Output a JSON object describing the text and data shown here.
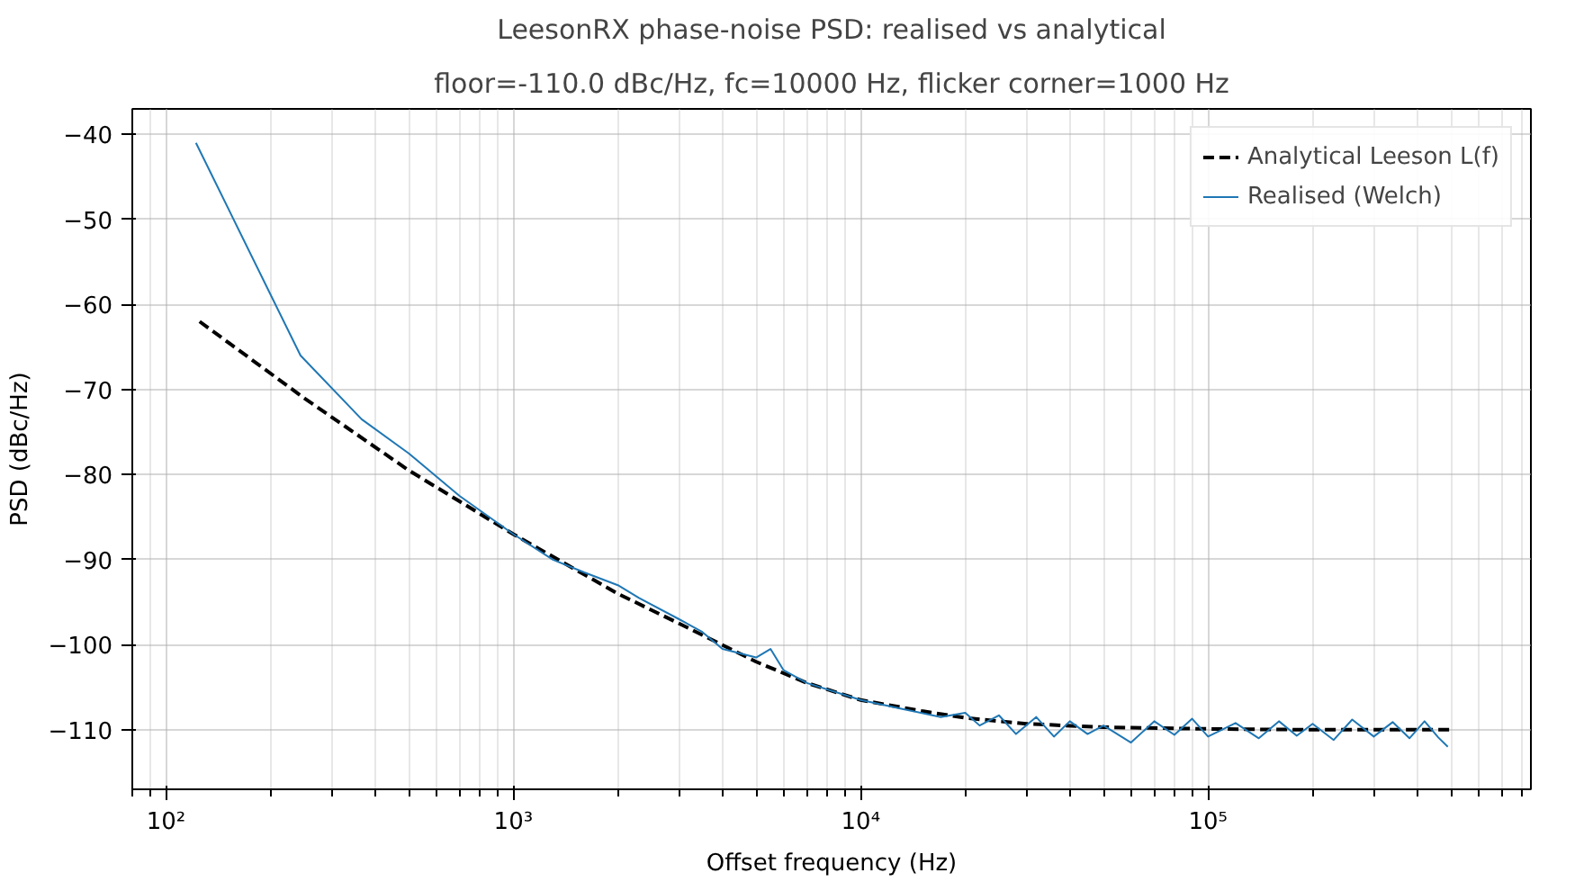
{
  "chart_data": {
    "type": "line",
    "title": "LeesonRX phase-noise PSD: realised vs analytical",
    "subtitle": "floor=-110.0 dBc/Hz, fc=10000 Hz, flicker corner=1000 Hz",
    "xlabel": "Offset frequency (Hz)",
    "ylabel": "PSD (dBc/Hz)",
    "log": "x",
    "grid": true,
    "legend": "top right",
    "marker": "none",
    "xlim": [
      80,
      850000
    ],
    "ylim": [
      -117,
      -37
    ],
    "xticks": [
      {
        "value": 100,
        "label": "10²"
      },
      {
        "value": 1000,
        "label": "10³"
      },
      {
        "value": 10000,
        "label": "10⁴"
      },
      {
        "value": 100000,
        "label": "10⁵"
      }
    ],
    "yticks": [
      -110,
      -100,
      -90,
      -80,
      -70,
      -60,
      -50,
      -40
    ],
    "series": [
      {
        "name": "Analytical Leeson L(f)",
        "color": "#000000",
        "line_style": "dashed",
        "x": [
          125,
          250,
          500,
          1000,
          2000,
          3000,
          5000,
          7000,
          10000,
          15000,
          20000,
          30000,
          50000,
          100000,
          200000,
          500000
        ],
        "values": [
          -62,
          -71,
          -79.5,
          -87,
          -94,
          -97.5,
          -102,
          -104.5,
          -106.5,
          -107.8,
          -108.6,
          -109.3,
          -109.7,
          -109.9,
          -110,
          -110
        ]
      },
      {
        "name": "Realised (Welch)",
        "color": "#1f77b4",
        "line_style": "solid",
        "x": [
          122,
          244,
          366,
          500,
          700,
          1000,
          1300,
          1600,
          2000,
          2300,
          3000,
          3500,
          4000,
          5000,
          5500,
          6000,
          7000,
          10000,
          13000,
          17000,
          20000,
          22000,
          25000,
          28000,
          32000,
          36000,
          40000,
          45000,
          50000,
          60000,
          70000,
          80000,
          90000,
          100000,
          120000,
          140000,
          160000,
          180000,
          200000,
          230000,
          260000,
          300000,
          340000,
          380000,
          420000,
          460000,
          490000
        ],
        "values": [
          -41,
          -66,
          -73.5,
          -77.5,
          -82.5,
          -87,
          -90,
          -91.5,
          -93,
          -94.5,
          -97,
          -98.5,
          -100.5,
          -101.5,
          -100.5,
          -103,
          -104.5,
          -106.5,
          -107.5,
          -108.5,
          -108,
          -109.5,
          -108.3,
          -110.5,
          -108.5,
          -110.8,
          -109,
          -110.5,
          -109.5,
          -111.5,
          -109,
          -110.6,
          -108.7,
          -110.8,
          -109.2,
          -111,
          -109,
          -110.7,
          -109.3,
          -111.2,
          -108.8,
          -110.8,
          -109.1,
          -111,
          -109,
          -110.9,
          -112
        ]
      }
    ]
  }
}
